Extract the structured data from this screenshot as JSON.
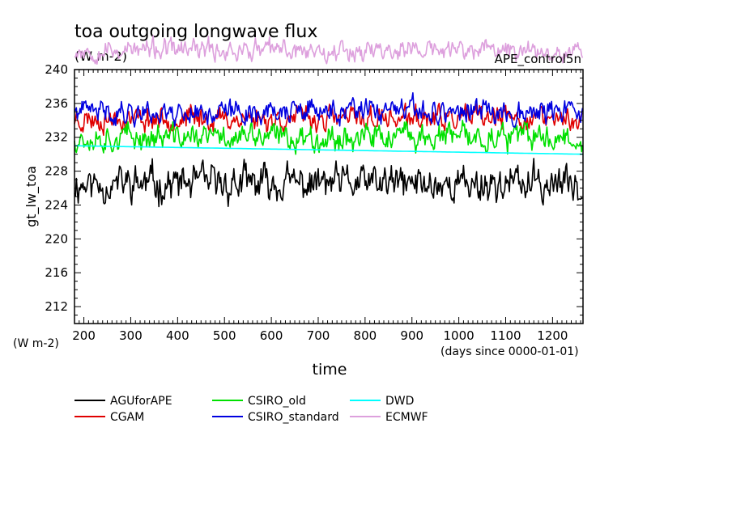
{
  "chart_data": {
    "type": "line",
    "title": "toa outgoing longwave flux",
    "subtitle": "(W m-2)",
    "annotation": "APE_control5n",
    "ylabel": "gt_lw_toa",
    "y_unit_label": "(W m-2)",
    "xlabel": "time",
    "x_unit_label": "(days since 0000-01-01)",
    "xlim": [
      180,
      1265
    ],
    "ylim": [
      210,
      240
    ],
    "x_ticks": [
      200,
      300,
      400,
      500,
      600,
      700,
      800,
      900,
      1000,
      1100,
      1200
    ],
    "y_ticks": [
      212,
      216,
      220,
      224,
      228,
      232,
      236,
      240
    ],
    "grid": false,
    "legend_position": "bottom",
    "series": [
      {
        "name": "AGUforAPE",
        "color": "#000000",
        "mean": 226.5,
        "amplitude": 1.4,
        "seed": 11
      },
      {
        "name": "CGAM",
        "color": "#e00000",
        "mean": 234.2,
        "amplitude": 0.9,
        "seed": 23
      },
      {
        "name": "CSIRO_old",
        "color": "#00e000",
        "mean": 232.0,
        "amplitude": 1.0,
        "seed": 37
      },
      {
        "name": "CSIRO_standard",
        "color": "#0000e0",
        "mean": 235.0,
        "amplitude": 0.9,
        "seed": 41
      },
      {
        "name": "DWD",
        "color": "#00ffff",
        "start": 231.0,
        "end": 230.0
      },
      {
        "name": "ECMWF",
        "color": "#dda0dd",
        "mean": 242.3,
        "amplitude": 0.8,
        "seed": 53
      }
    ]
  }
}
